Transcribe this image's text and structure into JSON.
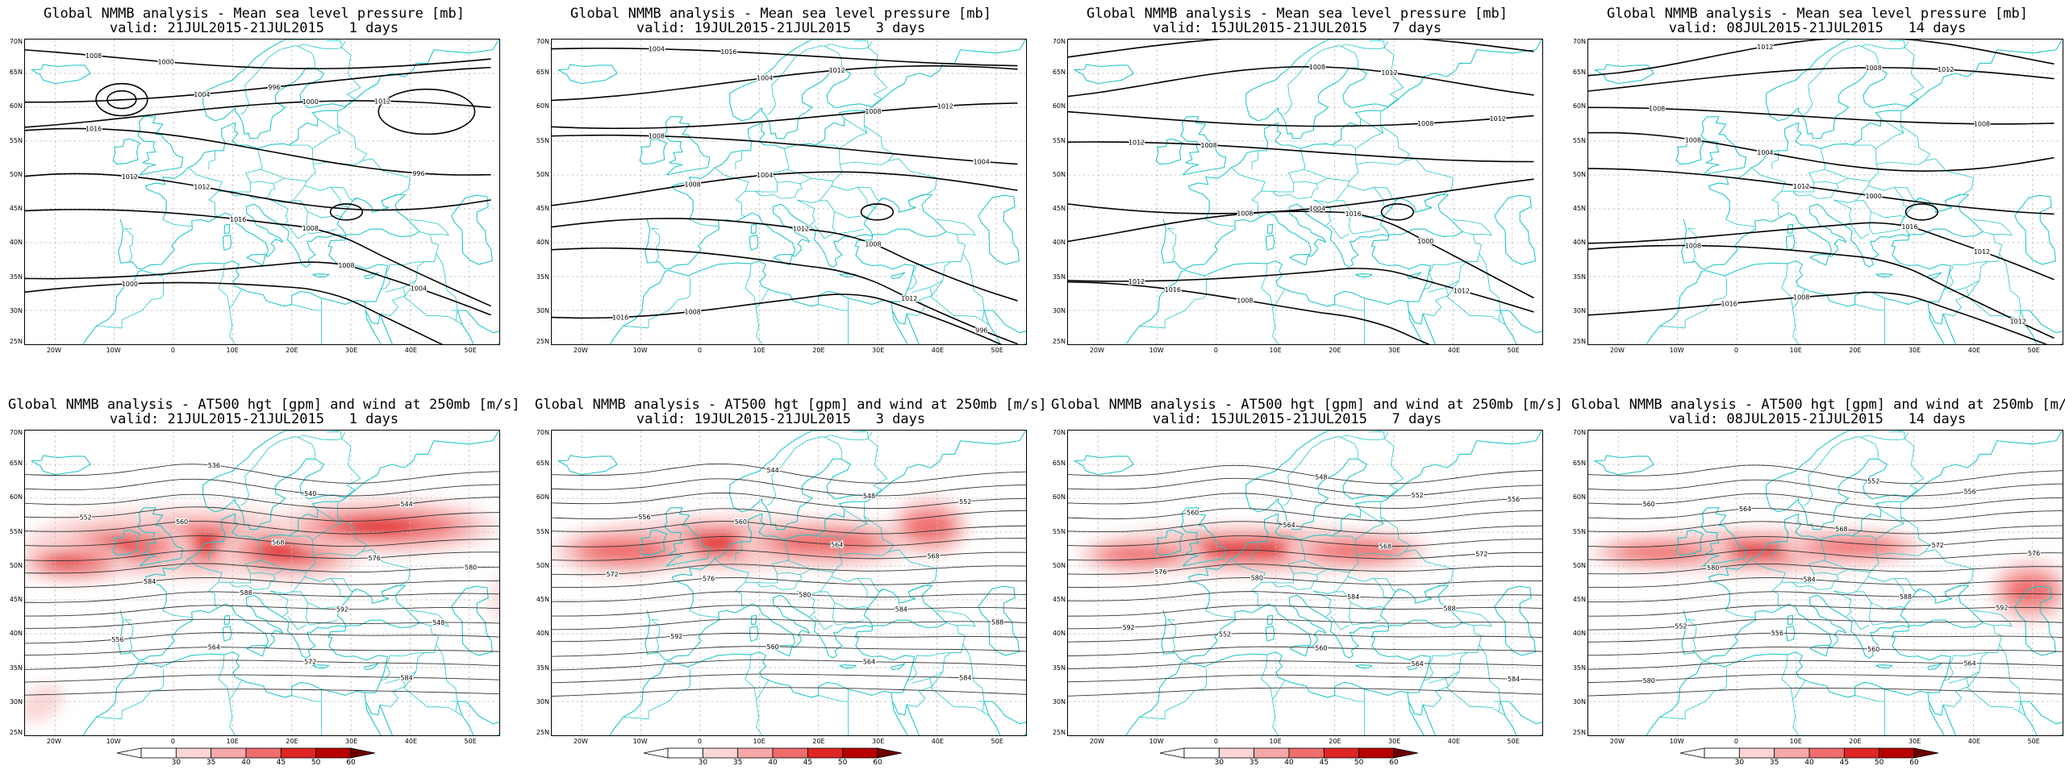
{
  "figure": {
    "colors": {
      "coast": "#27c6c6",
      "contour_mslp": "#000000",
      "contour_hgt": "#333333",
      "grid": "#bfbfbf",
      "wind_shades": [
        "#ffffff",
        "#fbd6d6",
        "#f7a8a8",
        "#ef6d6d",
        "#e02525",
        "#b80000"
      ]
    },
    "lat_labels": [
      "70N",
      "65N",
      "60N",
      "55N",
      "50N",
      "45N",
      "40N",
      "35N",
      "30N",
      "25N"
    ],
    "lon_labels": [
      "20W",
      "10W",
      "0",
      "10E",
      "20E",
      "30E",
      "40E",
      "50E"
    ],
    "colorbar": {
      "labels": [
        "30",
        "35",
        "40",
        "45",
        "50",
        "60"
      ]
    },
    "panels": [
      {
        "kind": "mslp",
        "title": "Global NMMB analysis - Mean sea level pressure [mb]",
        "valid": "valid: 21JUL2015-21JUL2015   1 days",
        "contour_labels": [
          "1008",
          "1004",
          "1000",
          "996",
          "1012",
          "1016",
          "1008",
          "1004",
          "1000",
          "996",
          "1012",
          "1016",
          "1012",
          "1008",
          "1004",
          "1000"
        ]
      },
      {
        "kind": "mslp",
        "title": "Global NMMB analysis - Mean sea level pressure [mb]",
        "valid": "valid: 19JUL2015-21JUL2015   3 days",
        "contour_labels": [
          "1004",
          "1004",
          "1008",
          "1004",
          "1008",
          "1012",
          "1012",
          "1016",
          "1016",
          "1012",
          "1012",
          "1008",
          "1004",
          "1008",
          "996",
          "1008"
        ]
      },
      {
        "kind": "mslp",
        "title": "Global NMMB analysis - Mean sea level pressure [mb]",
        "valid": "valid: 15JUL2015-21JUL2015   7 days",
        "contour_labels": [
          "1012",
          "1008",
          "1008",
          "1012",
          "1008",
          "1016",
          "1012",
          "1016",
          "1016",
          "1012",
          "1012",
          "1008",
          "1004",
          "1000",
          "1012",
          "1008"
        ]
      },
      {
        "kind": "mslp",
        "title": "Global NMMB analysis - Mean sea level pressure [mb]",
        "valid": "valid: 08JUL2015-21JUL2015   14 days",
        "contour_labels": [
          "1012",
          "1008",
          "1008",
          "1008",
          "1012",
          "1016",
          "1012",
          "1016",
          "1012",
          "1012",
          "1008",
          "1004",
          "1000",
          "1012",
          "1008",
          "1008"
        ]
      },
      {
        "kind": "hgt",
        "title": "Global NMMB analysis - AT500 hgt [gpm] and wind at 250mb [m/s]",
        "valid": "valid: 21JUL2015-21JUL2015   1 days",
        "contour_labels": [
          "536",
          "540",
          "544",
          "552",
          "560",
          "568",
          "576",
          "580",
          "584",
          "588",
          "592",
          "548",
          "556",
          "564",
          "572",
          "584"
        ]
      },
      {
        "kind": "hgt",
        "title": "Global NMMB analysis - AT500 hgt [gpm] and wind at 250mb [m/s]",
        "valid": "valid: 19JUL2015-21JUL2015   3 days",
        "contour_labels": [
          "544",
          "548",
          "552",
          "556",
          "560",
          "564",
          "568",
          "572",
          "576",
          "580",
          "584",
          "588",
          "592",
          "560",
          "564",
          "584"
        ]
      },
      {
        "kind": "hgt",
        "title": "Global NMMB analysis - AT500 hgt [gpm] and wind at 250mb [m/s]",
        "valid": "valid: 15JUL2015-21JUL2015   7 days",
        "contour_labels": [
          "548",
          "552",
          "556",
          "560",
          "564",
          "568",
          "572",
          "576",
          "580",
          "584",
          "588",
          "592",
          "552",
          "560",
          "564",
          "584"
        ]
      },
      {
        "kind": "hgt",
        "title": "Global NMMB analysis - AT500 hgt [gpm] and wind at 250mb [m/s]",
        "valid": "valid: 08JUL2015-21JUL2015   14 days",
        "contour_labels": [
          "552",
          "556",
          "560",
          "564",
          "568",
          "572",
          "576",
          "580",
          "584",
          "588",
          "592",
          "552",
          "556",
          "560",
          "564",
          "580"
        ]
      }
    ]
  }
}
